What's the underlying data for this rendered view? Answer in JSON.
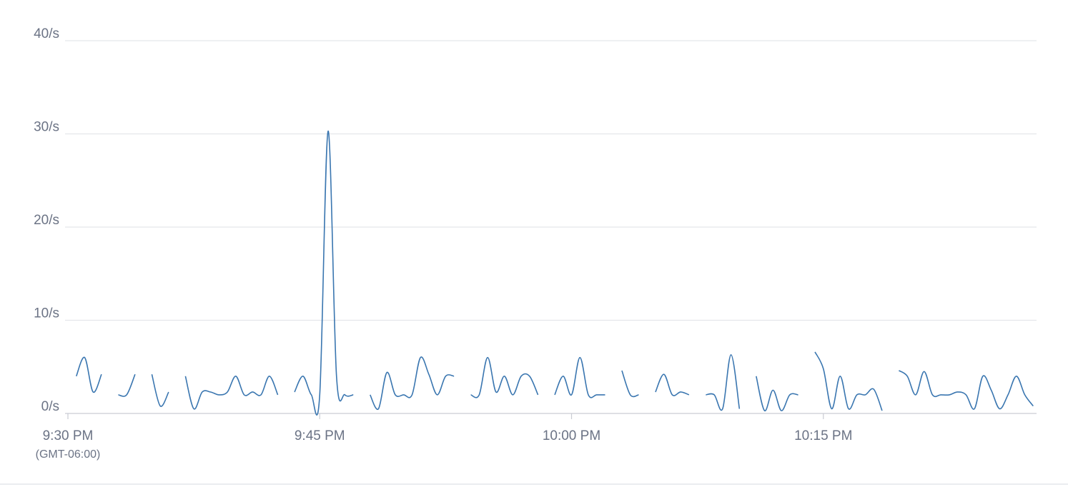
{
  "chart_data": {
    "type": "line",
    "x_sublabel": "(GMT-06:00)",
    "x": [
      0,
      0.5,
      1,
      1.5,
      2,
      2.5,
      3,
      3.5,
      4,
      4.5,
      5,
      5.5,
      6,
      6.5,
      7,
      7.5,
      8,
      8.5,
      9,
      9.5,
      10,
      10.5,
      11,
      11.5,
      12,
      12.5,
      13,
      13.5,
      14,
      14.5,
      15,
      15.5,
      16,
      16.5,
      17,
      17.5,
      18,
      18.5,
      19,
      19.5,
      20,
      20.5,
      21,
      21.5,
      22,
      22.5,
      23,
      23.5,
      24,
      24.5,
      25,
      25.5,
      26,
      26.5,
      27,
      27.5,
      28,
      28.5,
      29,
      29.5,
      30,
      30.5,
      31,
      31.5,
      32,
      32.5,
      33,
      33.5,
      34,
      34.5,
      35,
      35.5,
      36,
      36.5,
      37,
      37.5,
      38,
      38.5,
      39,
      39.5,
      40,
      40.5,
      41,
      41.5,
      42,
      42.5,
      43,
      43.5,
      44,
      44.5,
      45,
      45.5,
      46,
      46.5,
      47,
      47.5,
      48,
      48.5,
      49,
      49.5,
      50,
      50.5,
      51,
      51.5,
      52,
      52.5,
      53,
      53.5,
      54,
      54.5,
      55,
      55.5,
      56,
      56.5,
      57,
      57.5
    ],
    "series": [
      {
        "color": "#3a76b0",
        "values": [
          null,
          4,
          6,
          2.3,
          4.2,
          null,
          2,
          2,
          4.2,
          null,
          4.2,
          0.8,
          2.3,
          null,
          4,
          0.5,
          2.3,
          2.3,
          2,
          2.3,
          4,
          2,
          2.3,
          2,
          4,
          2,
          null,
          2.3,
          4,
          2,
          2,
          30.3,
          4,
          2,
          2,
          null,
          2,
          0.5,
          4.4,
          2,
          2,
          2,
          6,
          4.2,
          2,
          4,
          4,
          null,
          2,
          2,
          6,
          2.3,
          4,
          2,
          4,
          4,
          2,
          null,
          2,
          4,
          2,
          6,
          2,
          2,
          2,
          null,
          4.6,
          2,
          2,
          null,
          2.3,
          4.2,
          2,
          2.3,
          2,
          null,
          2,
          2,
          0.5,
          6.3,
          0.5,
          null,
          4,
          0.3,
          2.5,
          0.3,
          2,
          2,
          null,
          6.6,
          4.8,
          0.5,
          4,
          0.5,
          2,
          2,
          2.6,
          0.3,
          null,
          4.6,
          4,
          2,
          4.5,
          2,
          2,
          2,
          2.3,
          2,
          0.5,
          4,
          2.5,
          0.5,
          2,
          4,
          2,
          0.8
        ]
      }
    ],
    "xlim": [
      0,
      57.7
    ],
    "xticks": [
      {
        "value": 0,
        "label": "9:30 PM"
      },
      {
        "value": 15,
        "label": "9:45 PM"
      },
      {
        "value": 30,
        "label": "10:00 PM"
      },
      {
        "value": 45,
        "label": "10:15 PM"
      }
    ],
    "ylim": [
      0,
      40
    ],
    "yticks": [
      {
        "value": 0,
        "label": "0/s"
      },
      {
        "value": 10,
        "label": "10/s"
      },
      {
        "value": 20,
        "label": "20/s"
      },
      {
        "value": 30,
        "label": "30/s"
      },
      {
        "value": 40,
        "label": "40/s"
      }
    ],
    "grid": true
  }
}
